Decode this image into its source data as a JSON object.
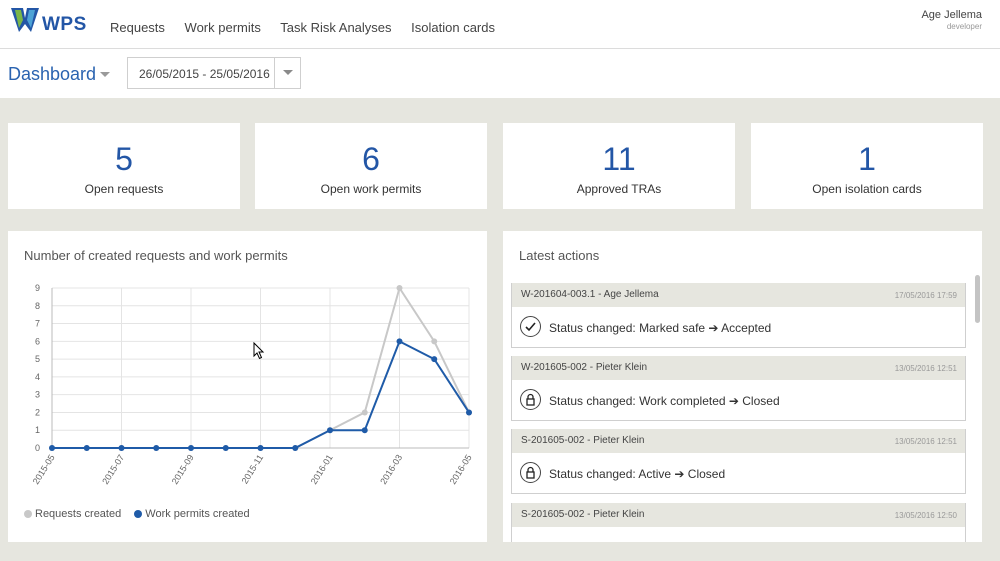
{
  "app": {
    "logo_text": "WPS"
  },
  "nav": [
    "Requests",
    "Work permits",
    "Task Risk Analyses",
    "Isolation cards"
  ],
  "user": {
    "name": "Age Jellema",
    "role": "developer"
  },
  "dashboard": {
    "title": "Dashboard",
    "date_range": "26/05/2015 - 25/05/2016"
  },
  "stats": [
    {
      "value": "5",
      "label": "Open requests"
    },
    {
      "value": "6",
      "label": "Open work permits"
    },
    {
      "value": "11",
      "label": "Approved TRAs"
    },
    {
      "value": "1",
      "label": "Open isolation cards"
    }
  ],
  "chart_panel": {
    "title": "Number of created requests and work permits"
  },
  "chart_data": {
    "type": "line",
    "title": "Number of created requests and work permits",
    "x": [
      "2015-05",
      "2015-06",
      "2015-07",
      "2015-08",
      "2015-09",
      "2015-10",
      "2015-11",
      "2015-12",
      "2016-01",
      "2016-02",
      "2016-03",
      "2016-04",
      "2016-05"
    ],
    "xtick_labels": [
      "2015-05",
      "2015-07",
      "2015-09",
      "2015-11",
      "2016-01",
      "2016-03",
      "2016-05"
    ],
    "ylim": [
      0,
      9
    ],
    "yticks": [
      0,
      1,
      2,
      3,
      4,
      5,
      6,
      7,
      8,
      9
    ],
    "grid": true,
    "legend": "bottom-left",
    "series": [
      {
        "name": "Requests created",
        "color": "#c8c8c8",
        "values": [
          0,
          0,
          0,
          0,
          0,
          0,
          0,
          0,
          1,
          2,
          9,
          6,
          2
        ]
      },
      {
        "name": "Work permits created",
        "color": "#1f5ba8",
        "values": [
          0,
          0,
          0,
          0,
          0,
          0,
          0,
          0,
          1,
          1,
          6,
          5,
          2
        ]
      }
    ]
  },
  "actions_panel": {
    "title": "Latest actions",
    "items": [
      {
        "ref": "W-201604-003.1",
        "user": "Age Jellema",
        "time": "17/05/2016 17:59",
        "icon": "check-icon",
        "text": "Status changed: Marked safe ➔ Accepted"
      },
      {
        "ref": "W-201605-002",
        "user": "Pieter Klein",
        "time": "13/05/2016 12:51",
        "icon": "lock-icon",
        "text": "Status changed: Work completed ➔ Closed"
      },
      {
        "ref": "S-201605-002",
        "user": "Pieter Klein",
        "time": "13/05/2016 12:51",
        "icon": "lock-icon",
        "text": "Status changed: Active ➔ Closed"
      },
      {
        "ref": "S-201605-002",
        "user": "Pieter Klein",
        "time": "13/05/2016 12:50",
        "icon": "",
        "text": ""
      }
    ]
  }
}
